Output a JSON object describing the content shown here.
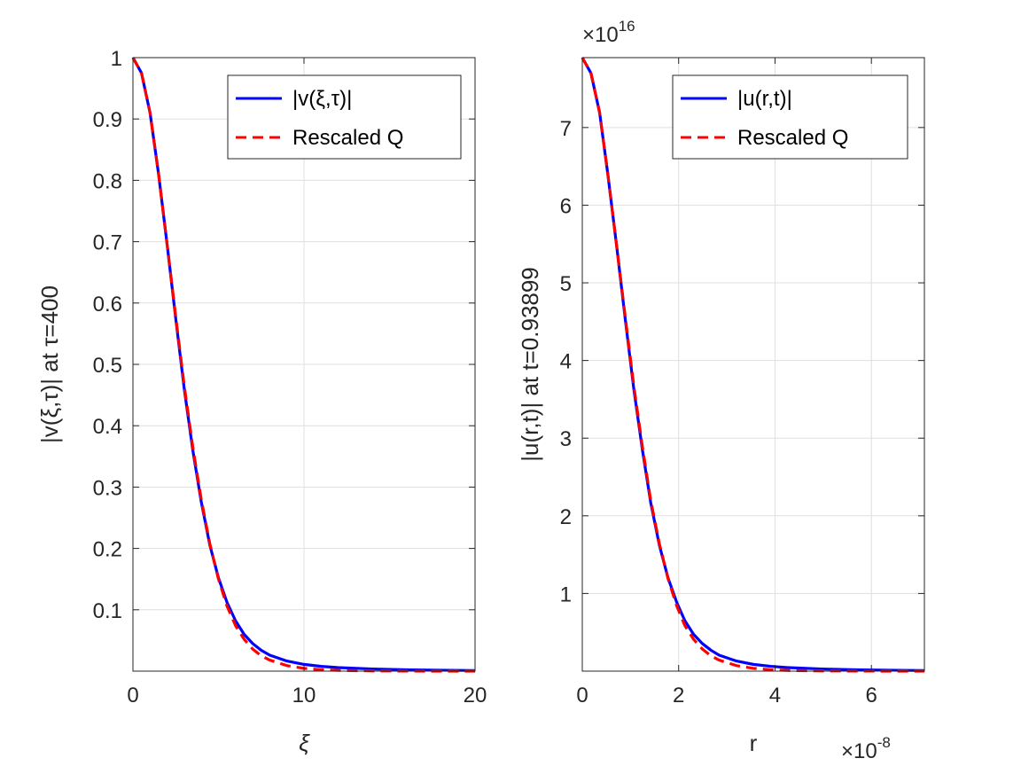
{
  "chart_data": [
    {
      "type": "line",
      "xlabel": "ξ",
      "ylabel": "|v(ξ,τ)| at τ=400",
      "xlim": [
        0,
        20
      ],
      "ylim": [
        0,
        1
      ],
      "grid": true,
      "x_ticks": [
        0,
        10,
        20
      ],
      "x_tick_labels": [
        "0",
        "10",
        "20"
      ],
      "y_ticks": [
        0.1,
        0.2,
        0.3,
        0.4,
        0.5,
        0.6,
        0.7,
        0.8,
        0.9,
        1
      ],
      "y_tick_labels": [
        "0.1",
        "0.2",
        "0.3",
        "0.4",
        "0.5",
        "0.6",
        "0.7",
        "0.8",
        "0.9",
        "1"
      ],
      "x_exponent_label": "",
      "y_exponent_label": "",
      "legend_position": "top-right",
      "series": [
        {
          "name": "|v(ξ,τ)|",
          "color": "#0000ff",
          "style": "solid",
          "x": [
            0,
            0.5,
            1,
            1.5,
            2,
            2.5,
            3,
            3.5,
            4,
            4.5,
            5,
            5.5,
            6,
            6.5,
            7,
            7.5,
            8,
            9,
            10,
            11,
            12,
            14,
            16,
            18,
            20
          ],
          "y": [
            1.0,
            0.975,
            0.91,
            0.81,
            0.695,
            0.575,
            0.46,
            0.36,
            0.275,
            0.205,
            0.152,
            0.112,
            0.082,
            0.06,
            0.045,
            0.034,
            0.026,
            0.0165,
            0.011,
            0.0078,
            0.0058,
            0.0035,
            0.0022,
            0.0015,
            0.001
          ]
        },
        {
          "name": "Rescaled Q",
          "color": "#ff0000",
          "style": "dashed",
          "x": [
            0,
            0.5,
            1,
            1.5,
            2,
            2.5,
            3,
            3.5,
            4,
            4.5,
            5,
            5.5,
            6,
            6.5,
            7,
            7.5,
            8,
            9,
            10,
            11,
            12,
            14,
            16,
            18,
            20
          ],
          "y": [
            1.0,
            0.975,
            0.91,
            0.81,
            0.695,
            0.578,
            0.465,
            0.365,
            0.279,
            0.207,
            0.15,
            0.106,
            0.074,
            0.052,
            0.036,
            0.025,
            0.018,
            0.009,
            0.0045,
            0.0023,
            0.0012,
            0.0004,
            0.0001,
            0.0,
            0.0
          ]
        }
      ]
    },
    {
      "type": "line",
      "xlabel": "r",
      "ylabel": "|u(r,t)| at t=0.93899",
      "xlim": [
        0,
        7.1
      ],
      "ylim": [
        0,
        7.9
      ],
      "grid": true,
      "x_ticks": [
        0,
        2,
        4,
        6
      ],
      "x_tick_labels": [
        "0",
        "2",
        "4",
        "6"
      ],
      "y_ticks": [
        1,
        2,
        3,
        4,
        5,
        6,
        7
      ],
      "y_tick_labels": [
        "1",
        "2",
        "3",
        "4",
        "5",
        "6",
        "7"
      ],
      "x_exponent_label": "×10",
      "x_exponent_power": "-8",
      "y_exponent_label": "×10",
      "y_exponent_power": "16",
      "legend_position": "top-right",
      "series": [
        {
          "name": "|u(r,t)|",
          "color": "#0000ff",
          "style": "solid",
          "x": [
            0,
            0.18,
            0.36,
            0.53,
            0.71,
            0.89,
            1.07,
            1.25,
            1.42,
            1.6,
            1.78,
            1.96,
            2.13,
            2.31,
            2.49,
            2.67,
            2.84,
            3.2,
            3.55,
            3.91,
            4.26,
            4.97,
            5.68,
            6.39,
            7.1
          ],
          "y": [
            7.9,
            7.7,
            7.19,
            6.4,
            5.49,
            4.54,
            3.63,
            2.84,
            2.17,
            1.62,
            1.2,
            0.885,
            0.648,
            0.474,
            0.356,
            0.269,
            0.205,
            0.13,
            0.087,
            0.062,
            0.046,
            0.028,
            0.017,
            0.012,
            0.008
          ]
        },
        {
          "name": "Rescaled Q",
          "color": "#ff0000",
          "style": "dashed",
          "x": [
            0,
            0.18,
            0.36,
            0.53,
            0.71,
            0.89,
            1.07,
            1.25,
            1.42,
            1.6,
            1.78,
            1.96,
            2.13,
            2.31,
            2.49,
            2.67,
            2.84,
            3.2,
            3.55,
            3.91,
            4.26,
            4.97,
            5.68,
            6.39,
            7.1
          ],
          "y": [
            7.9,
            7.7,
            7.19,
            6.4,
            5.49,
            4.57,
            3.67,
            2.88,
            2.2,
            1.64,
            1.19,
            0.84,
            0.585,
            0.41,
            0.285,
            0.198,
            0.142,
            0.071,
            0.036,
            0.018,
            0.009,
            0.003,
            0.001,
            0.0,
            0.0
          ]
        }
      ]
    }
  ]
}
